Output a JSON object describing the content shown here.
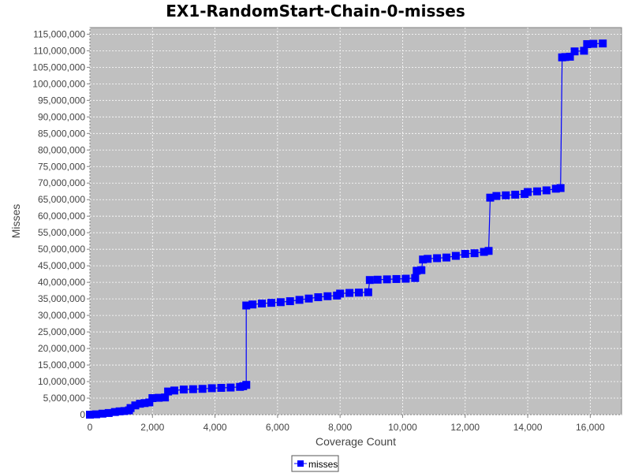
{
  "chart_data": {
    "type": "line",
    "title": "EX1-RandomStart-Chain-0-misses",
    "xlabel": "Coverage Count",
    "ylabel": "Misses",
    "xlim": [
      0,
      17000
    ],
    "ylim": [
      0,
      117000000
    ],
    "xticks": [
      0,
      2000,
      4000,
      6000,
      8000,
      10000,
      12000,
      14000,
      16000
    ],
    "xtick_labels": [
      "0",
      "2,000",
      "4,000",
      "6,000",
      "8,000",
      "10,000",
      "12,000",
      "14,000",
      "16,000"
    ],
    "yticks": [
      0,
      5000000,
      10000000,
      15000000,
      20000000,
      25000000,
      30000000,
      35000000,
      40000000,
      45000000,
      50000000,
      55000000,
      60000000,
      65000000,
      70000000,
      75000000,
      80000000,
      85000000,
      90000000,
      95000000,
      100000000,
      105000000,
      110000000,
      115000000
    ],
    "ytick_labels": [
      "0",
      "5,000,000",
      "10,000,000",
      "15,000,000",
      "20,000,000",
      "25,000,000",
      "30,000,000",
      "35,000,000",
      "40,000,000",
      "45,000,000",
      "50,000,000",
      "55,000,000",
      "60,000,000",
      "65,000,000",
      "70,000,000",
      "75,000,000",
      "80,000,000",
      "85,000,000",
      "90,000,000",
      "95,000,000",
      "100,000,000",
      "105,000,000",
      "110,000,000",
      "115,000,000"
    ],
    "grid": true,
    "legend": "bottom-center",
    "series": [
      {
        "name": "misses",
        "color": "#0000ff",
        "marker": "square",
        "x": [
          0,
          200,
          400,
          600,
          800,
          950,
          1100,
          1250,
          1300,
          1450,
          1600,
          1750,
          1900,
          2000,
          2200,
          2400,
          2500,
          2700,
          3000,
          3300,
          3600,
          3900,
          4200,
          4500,
          4800,
          4900,
          5000,
          5000,
          5200,
          5500,
          5800,
          6100,
          6400,
          6700,
          7000,
          7300,
          7600,
          7900,
          8000,
          8300,
          8600,
          8900,
          8950,
          9200,
          9500,
          9800,
          10100,
          10400,
          10450,
          10600,
          10650,
          10800,
          11100,
          11400,
          11700,
          12000,
          12300,
          12600,
          12750,
          12800,
          13000,
          13300,
          13600,
          13900,
          14000,
          14300,
          14600,
          14900,
          15050,
          15100,
          15200,
          15350,
          15500,
          15800,
          15900,
          16100,
          16400
        ],
        "y": [
          0,
          100000,
          300000,
          500000,
          800000,
          1000000,
          1100000,
          1300000,
          2000000,
          2800000,
          3300000,
          3500000,
          3700000,
          5000000,
          5100000,
          5200000,
          7000000,
          7300000,
          7600000,
          7700000,
          7800000,
          8000000,
          8100000,
          8200000,
          8400000,
          8600000,
          9000000,
          33000000,
          33300000,
          33600000,
          33800000,
          34000000,
          34300000,
          34700000,
          35100000,
          35500000,
          35800000,
          36000000,
          36600000,
          36800000,
          36900000,
          37000000,
          40700000,
          40800000,
          40900000,
          41000000,
          41100000,
          41300000,
          43500000,
          43700000,
          46900000,
          47100000,
          47300000,
          47500000,
          48000000,
          48600000,
          48800000,
          49200000,
          49500000,
          65600000,
          66100000,
          66300000,
          66500000,
          66700000,
          67300000,
          67500000,
          67800000,
          68300000,
          68500000,
          108000000,
          108100000,
          108200000,
          109800000,
          110000000,
          112000000,
          112100000,
          112200000
        ]
      }
    ]
  }
}
